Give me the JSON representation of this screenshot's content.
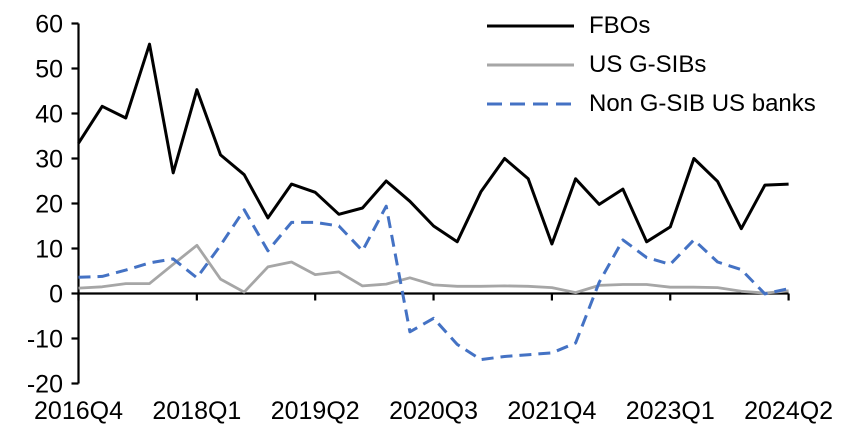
{
  "chart_data": {
    "type": "line",
    "title": "",
    "xlabel": "",
    "ylabel": "",
    "grid": false,
    "ylim": [
      -20,
      60
    ],
    "y_ticks": [
      60,
      50,
      40,
      30,
      20,
      10,
      0,
      -10,
      -20
    ],
    "x_categories": [
      "2016Q4",
      "2017Q1",
      "2017Q2",
      "2017Q3",
      "2017Q4",
      "2018Q1",
      "2018Q2",
      "2018Q3",
      "2018Q4",
      "2019Q1",
      "2019Q2",
      "2019Q3",
      "2019Q4",
      "2020Q1",
      "2020Q2",
      "2020Q3",
      "2020Q4",
      "2021Q1",
      "2021Q2",
      "2021Q3",
      "2021Q4",
      "2022Q1",
      "2022Q2",
      "2022Q3",
      "2022Q4",
      "2023Q1",
      "2023Q2",
      "2023Q3",
      "2023Q4",
      "2024Q1",
      "2024Q2"
    ],
    "x_tick_labels": [
      "2016Q4",
      "2018Q1",
      "2019Q2",
      "2020Q3",
      "2021Q4",
      "2023Q1",
      "2024Q2"
    ],
    "x_tick_indices": [
      0,
      5,
      10,
      15,
      20,
      25,
      30
    ],
    "legend_position": "top-right",
    "series": [
      {
        "name": "FBOs",
        "color": "#000000",
        "style": "solid",
        "values": [
          33.4,
          41.6,
          39.0,
          55.4,
          26.8,
          45.3,
          30.8,
          26.4,
          16.8,
          24.3,
          22.5,
          17.6,
          19.0,
          25.0,
          20.5,
          15.0,
          11.5,
          22.6,
          30.0,
          25.5,
          11.0,
          25.5,
          19.8,
          23.2,
          11.5,
          14.8,
          30.0,
          24.9,
          14.4,
          24.1,
          24.3
        ]
      },
      {
        "name": "US G-SIBs",
        "color": "#a6a6a6",
        "style": "solid",
        "values": [
          1.2,
          1.5,
          2.2,
          2.2,
          6.5,
          10.7,
          3.2,
          0.3,
          5.9,
          7.0,
          4.2,
          4.8,
          1.7,
          2.1,
          3.5,
          1.9,
          1.6,
          1.6,
          1.7,
          1.6,
          1.3,
          0.2,
          1.8,
          2.0,
          2.0,
          1.4,
          1.4,
          1.3,
          0.5,
          0.1,
          0.6
        ]
      },
      {
        "name": "Non G-SIB US banks",
        "color": "#4472c4",
        "style": "dashed",
        "values": [
          3.6,
          3.8,
          5.2,
          6.8,
          7.7,
          3.5,
          10.7,
          18.6,
          9.5,
          15.8,
          15.8,
          15.0,
          9.5,
          19.4,
          -8.5,
          -5.5,
          -11.3,
          -14.7,
          -14.0,
          -13.6,
          -13.2,
          -11.0,
          2.5,
          11.9,
          8.0,
          6.5,
          11.9,
          7.0,
          5.3,
          -0.1,
          1.1
        ]
      }
    ]
  }
}
